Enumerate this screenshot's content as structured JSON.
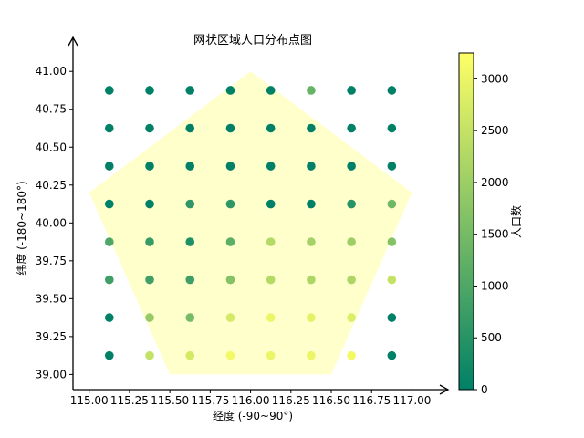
{
  "chart_data": {
    "type": "scatter",
    "title": "网状区域人口分布点图",
    "xlabel": "经度 (-90~90°)",
    "ylabel": "纬度 (-180~180°)",
    "colorbar_label": "人口数",
    "xlim": [
      114.9,
      117.15
    ],
    "ylim": [
      38.9,
      41.2
    ],
    "xticks": [
      115.0,
      115.25,
      115.5,
      115.75,
      116.0,
      116.25,
      116.5,
      116.75,
      117.0
    ],
    "xtick_labels": [
      "115.00",
      "115.25",
      "115.50",
      "115.75",
      "116.00",
      "116.25",
      "116.50",
      "116.75",
      "117.00"
    ],
    "yticks": [
      39.0,
      39.25,
      39.5,
      39.75,
      40.0,
      40.25,
      40.5,
      40.75,
      41.0
    ],
    "ytick_labels": [
      "39.00",
      "39.25",
      "39.50",
      "39.75",
      "40.00",
      "40.25",
      "40.50",
      "40.75",
      "41.00"
    ],
    "colorbar_ticks": [
      0,
      500,
      1000,
      1500,
      2000,
      2500,
      3000
    ],
    "colorbar_range": [
      0,
      3250
    ],
    "colormap": "summer",
    "colormap_start": "#008066",
    "colormap_end": "#ffff66",
    "region_fill": "#ffffcc",
    "region_polygon": [
      [
        116.0,
        41.0
      ],
      [
        117.0,
        40.2
      ],
      [
        116.5,
        39.0
      ],
      [
        115.5,
        39.0
      ],
      [
        115.0,
        40.2
      ]
    ],
    "grid_x": [
      115.125,
      115.375,
      115.625,
      115.875,
      116.125,
      116.375,
      116.625,
      116.875
    ],
    "grid_y": [
      40.875,
      40.625,
      40.375,
      40.125,
      39.875,
      39.625,
      39.375,
      39.125
    ],
    "population": [
      [
        0,
        0,
        0,
        0,
        0,
        1300,
        0,
        0
      ],
      [
        0,
        0,
        0,
        0,
        0,
        0,
        0,
        0
      ],
      [
        0,
        0,
        0,
        0,
        0,
        0,
        0,
        0
      ],
      [
        0,
        0,
        600,
        600,
        0,
        0,
        500,
        1400
      ],
      [
        1000,
        700,
        400,
        1200,
        2300,
        2100,
        2000,
        1700
      ],
      [
        800,
        800,
        800,
        1700,
        2300,
        2200,
        2200,
        2500
      ],
      [
        0,
        1900,
        1500,
        2700,
        3000,
        2900,
        2800,
        0
      ],
      [
        0,
        2500,
        2700,
        3100,
        3000,
        3000,
        3100,
        0
      ]
    ]
  }
}
